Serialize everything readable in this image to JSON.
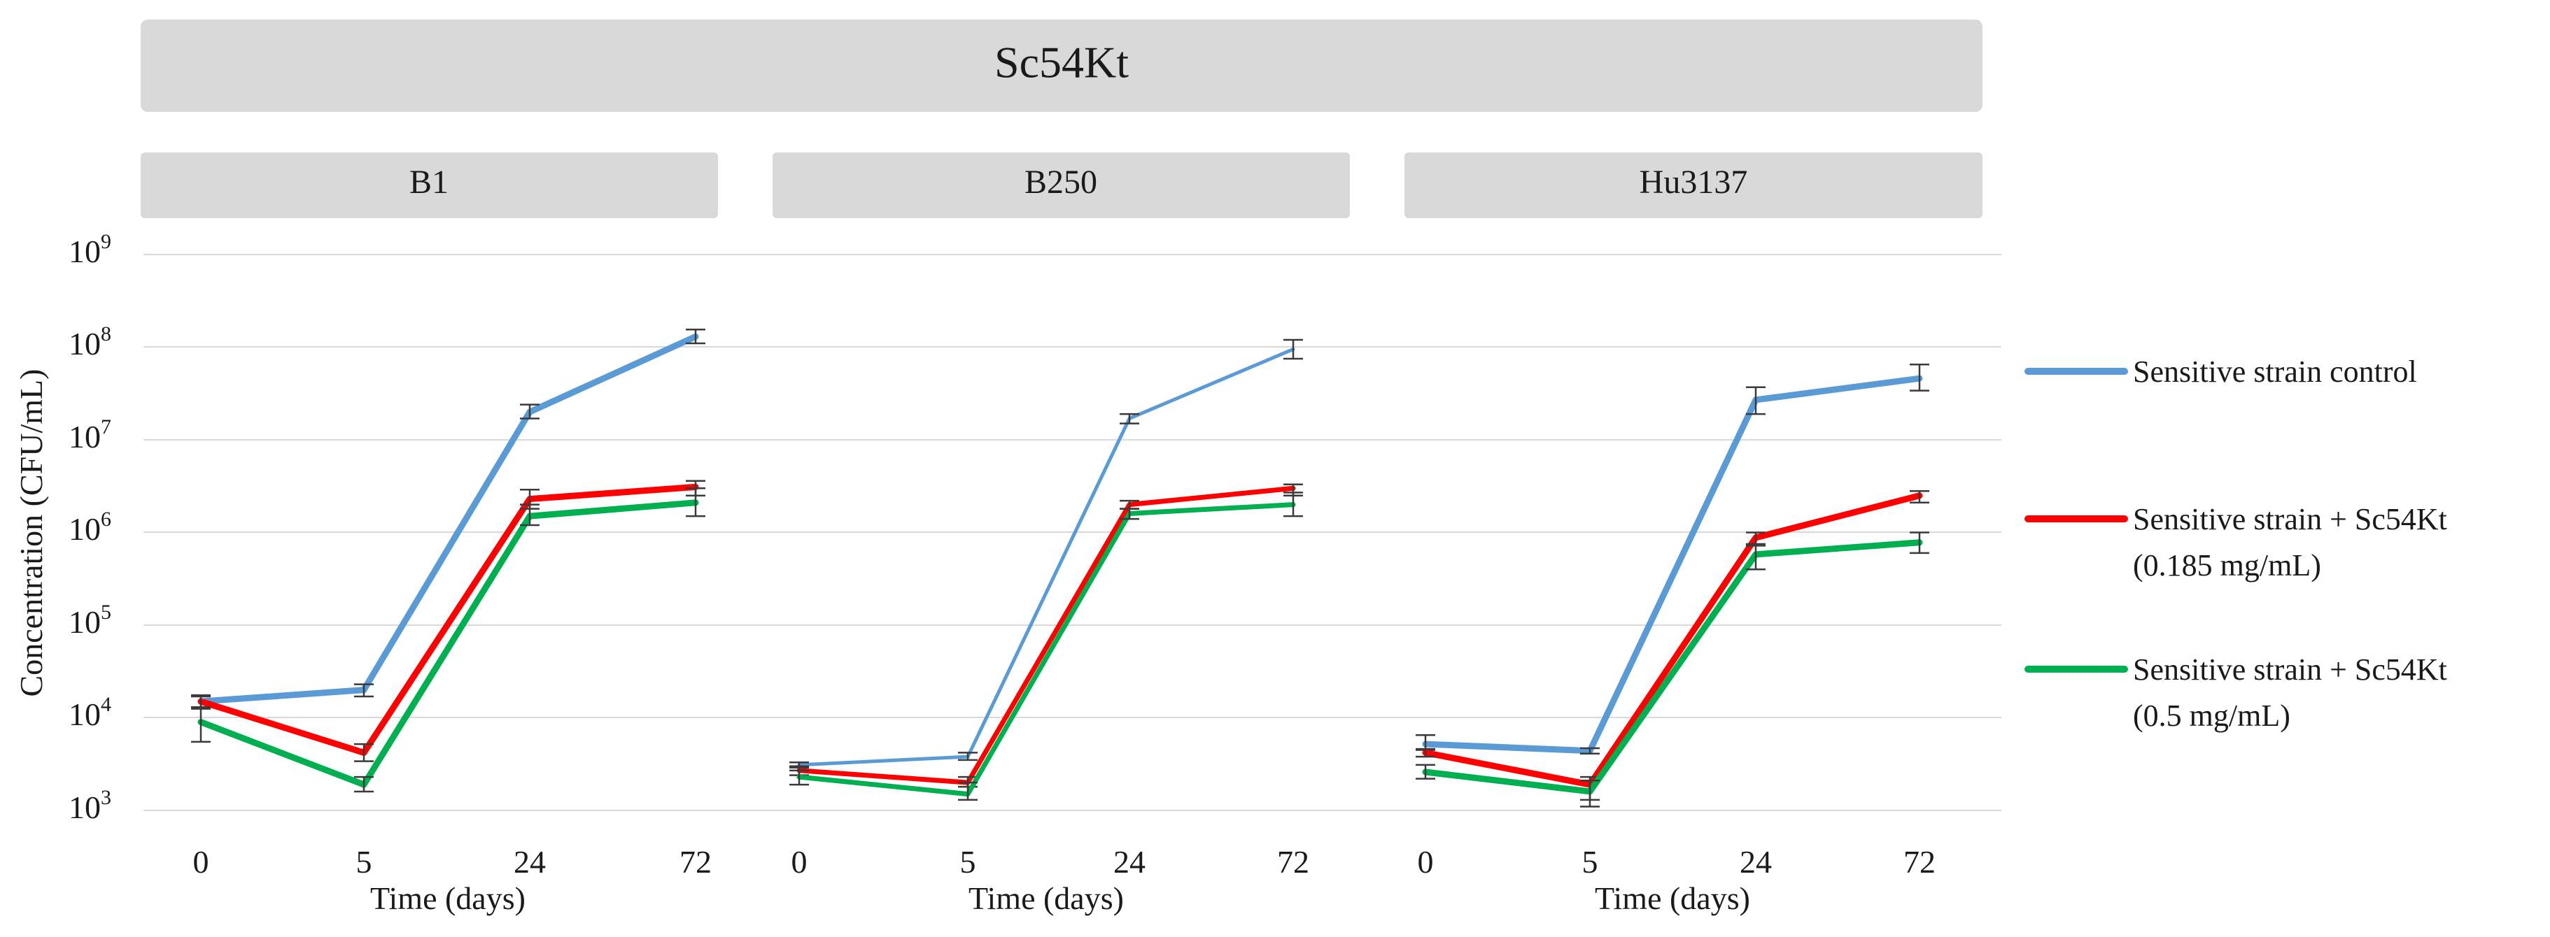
{
  "chart_data": {
    "type": "line",
    "title": "Sc54Kt",
    "xlabel": "Time (days)",
    "ylabel": "Concentration (CFU/mL)",
    "yscale": "log",
    "ylim": [
      1000,
      1000000000
    ],
    "ytick_labels": [
      {
        "base": "10",
        "exp": "3"
      },
      {
        "base": "10",
        "exp": "4"
      },
      {
        "base": "10",
        "exp": "5"
      },
      {
        "base": "10",
        "exp": "6"
      },
      {
        "base": "10",
        "exp": "7"
      },
      {
        "base": "10",
        "exp": "8"
      },
      {
        "base": "10",
        "exp": "9"
      }
    ],
    "categories": [
      "0",
      "5",
      "24",
      "72"
    ],
    "legend": [
      {
        "name": "Sensitive strain control",
        "color": "#5b9bd5"
      },
      {
        "name": "Sensitive strain + Sc54Kt (0.185 mg/mL)",
        "line1": "Sensitive strain + Sc54Kt",
        "line2": "(0.185 mg/mL)",
        "color": "#ff0000"
      },
      {
        "name": "Sensitive strain + Sc54Kt (0.5 mg/mL)",
        "line1": "Sensitive strain + Sc54Kt",
        "line2": "(0.5 mg/mL)",
        "color": "#00b050"
      }
    ],
    "panels": [
      {
        "name": "B1",
        "series": [
          {
            "name": "Sensitive strain control",
            "values": [
              15000,
              20000,
              20000000,
              130000000
            ],
            "err_low": [
              13000,
              17000,
              17000000,
              110000000
            ],
            "err_high": [
              17500,
              23000,
              24000000,
              155000000
            ]
          },
          {
            "name": "Sensitive strain + Sc54Kt (0.185 mg/mL)",
            "values": [
              15000,
              4200,
              2300000,
              3100000
            ],
            "err_low": [
              12500,
              3400,
              1800000,
              2500000
            ],
            "err_high": [
              17000,
              5200,
              2900000,
              3600000
            ]
          },
          {
            "name": "Sensitive strain + Sc54Kt (0.5 mg/mL)",
            "values": [
              9000,
              1900,
              1500000,
              2100000
            ],
            "err_low": [
              5500,
              1600,
              1200000,
              1500000
            ],
            "err_high": [
              13000,
              2300,
              2000000,
              3000000
            ]
          }
        ]
      },
      {
        "name": "B250",
        "series": [
          {
            "name": "Sensitive strain control",
            "values": [
              3100,
              3800,
              17000000,
              95000000
            ],
            "err_low": [
              2900,
              3500,
              15000000,
              75000000
            ],
            "err_high": [
              3300,
              4200,
              19000000,
              120000000
            ]
          },
          {
            "name": "Sensitive strain + Sc54Kt (0.185 mg/mL)",
            "values": [
              2700,
              2000,
              2000000,
              3000000
            ],
            "err_low": [
              2400,
              1800,
              1800000,
              2500000
            ],
            "err_high": [
              3000,
              2300,
              2200000,
              3300000
            ]
          },
          {
            "name": "Sensitive strain + Sc54Kt (0.5 mg/mL)",
            "values": [
              2300,
              1500,
              1600000,
              2000000
            ],
            "err_low": [
              1900,
              1300,
              1400000,
              1500000
            ],
            "err_high": [
              2700,
              2000,
              1800000,
              2700000
            ]
          }
        ]
      },
      {
        "name": "Hu3137",
        "series": [
          {
            "name": "Sensitive strain control",
            "values": [
              5200,
              4400,
              27000000,
              46000000
            ],
            "err_low": [
              4500,
              4100,
              19000000,
              34000000
            ],
            "err_high": [
              6500,
              4700,
              37000000,
              65000000
            ]
          },
          {
            "name": "Sensitive strain + Sc54Kt (0.185 mg/mL)",
            "values": [
              4200,
              1900,
              880000,
              2500000
            ],
            "err_low": [
              3800,
              1300,
              750000,
              2100000
            ],
            "err_high": [
              4600,
              2300,
              1000000,
              2800000
            ]
          },
          {
            "name": "Sensitive strain + Sc54Kt (0.5 mg/mL)",
            "values": [
              2600,
              1600,
              580000,
              780000
            ],
            "err_low": [
              2200,
              1100,
              400000,
              600000
            ],
            "err_high": [
              3100,
              2100,
              720000,
              1000000
            ]
          }
        ]
      }
    ]
  }
}
